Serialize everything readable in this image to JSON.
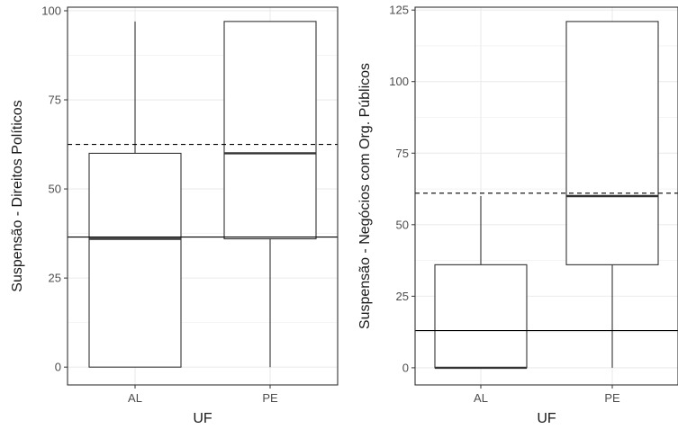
{
  "chart_data": [
    {
      "type": "boxplot",
      "xlabel": "UF",
      "ylabel": "Suspensão - Direitos Políticos",
      "categories": [
        "AL",
        "PE"
      ],
      "ylim": [
        -5,
        101
      ],
      "yticks": [
        0,
        25,
        50,
        75,
        100
      ],
      "boxes": [
        {
          "category": "AL",
          "whisker_low": 0,
          "q1": 0,
          "median": 36,
          "q3": 60,
          "whisker_high": 97
        },
        {
          "category": "PE",
          "whisker_low": 0,
          "q1": 36,
          "median": 60,
          "q3": 97,
          "whisker_high": 97
        }
      ],
      "reference_lines": [
        {
          "style": "solid",
          "value": 36.5
        },
        {
          "style": "dashed",
          "value": 62.5
        }
      ],
      "grid": true
    },
    {
      "type": "boxplot",
      "xlabel": "UF",
      "ylabel": "Suspensão - Negócios com Org. Públicos",
      "categories": [
        "AL",
        "PE"
      ],
      "ylim": [
        -6,
        126
      ],
      "yticks": [
        0,
        25,
        50,
        75,
        100,
        125
      ],
      "boxes": [
        {
          "category": "AL",
          "whisker_low": 0,
          "q1": 0,
          "median": 0,
          "q3": 36,
          "whisker_high": 60
        },
        {
          "category": "PE",
          "whisker_low": 0,
          "q1": 36,
          "median": 60,
          "q3": 121,
          "whisker_high": 121
        }
      ],
      "reference_lines": [
        {
          "style": "solid",
          "value": 13
        },
        {
          "style": "dashed",
          "value": 61
        }
      ],
      "grid": true
    }
  ]
}
